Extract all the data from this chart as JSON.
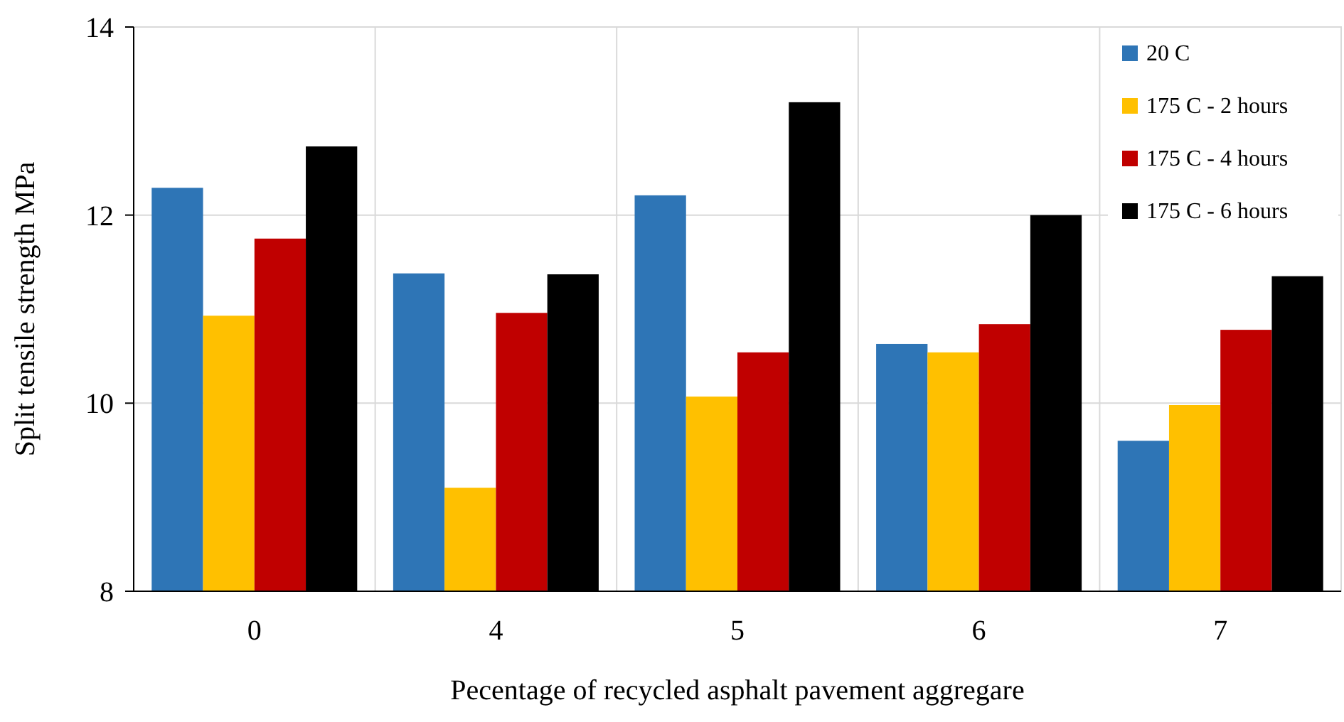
{
  "chart_data": {
    "type": "bar",
    "xlabel": "Pecentage of recycled asphalt pavement aggregare",
    "ylabel": "Split tensile  strength MPa",
    "categories": [
      "0",
      "4",
      "5",
      "6",
      "7"
    ],
    "series": [
      {
        "name": "20 C",
        "color": "#2e75b6",
        "values": [
          12.29,
          11.38,
          12.21,
          10.63,
          9.6
        ]
      },
      {
        "name": "175 C - 2 hours",
        "color": "#ffc000",
        "values": [
          10.93,
          9.1,
          10.07,
          10.54,
          9.98
        ]
      },
      {
        "name": "175 C - 4 hours",
        "color": "#c00000",
        "values": [
          11.75,
          10.96,
          10.54,
          10.84,
          10.78
        ]
      },
      {
        "name": "175 C - 6 hours",
        "color": "#000000",
        "values": [
          12.73,
          11.37,
          13.2,
          12.0,
          11.35
        ]
      }
    ],
    "ylim": [
      8,
      14
    ],
    "yticks": [
      8,
      10,
      12,
      14
    ],
    "grid": true,
    "legend": "top right"
  }
}
